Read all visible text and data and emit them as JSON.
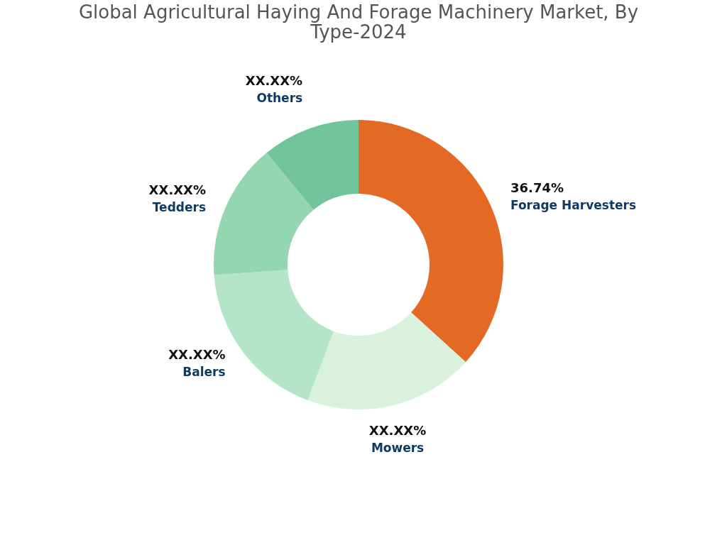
{
  "chart_data": {
    "type": "donut",
    "title": [
      "Global Agricultural Haying And Forage Machinery Market, By",
      "Type-2024"
    ],
    "categories": [
      "Forage Harvesters",
      "Mowers",
      "Balers",
      "Tedders",
      "Others"
    ],
    "values": [
      36.74,
      18.96,
      18.16,
      15.2,
      10.94
    ],
    "colors": [
      "#e36a25",
      "#d9f2dd",
      "#b5e5c8",
      "#93d6b0",
      "#72c49a"
    ],
    "value_labels": [
      "36.74%",
      "XX.XX%",
      "XX.XX%",
      "XX.XX%",
      "XX.XX%"
    ],
    "legend": false
  }
}
